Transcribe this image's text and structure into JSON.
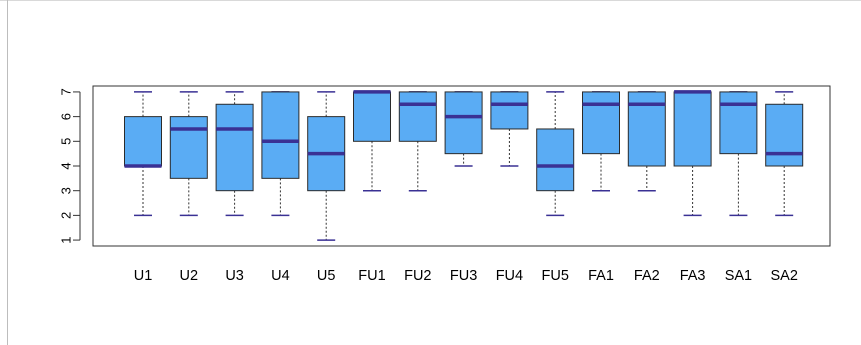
{
  "chart_data": {
    "type": "boxplot",
    "categories": [
      "U1",
      "U2",
      "U3",
      "U4",
      "U5",
      "FU1",
      "FU2",
      "FU3",
      "FU4",
      "FU5",
      "FA1",
      "FA2",
      "FA3",
      "SA1",
      "SA2"
    ],
    "boxes": [
      {
        "name": "U1",
        "min": 2,
        "q1": 4,
        "median": 4,
        "q3": 6,
        "max": 7
      },
      {
        "name": "U2",
        "min": 2,
        "q1": 3.5,
        "median": 5.5,
        "q3": 6,
        "max": 7
      },
      {
        "name": "U3",
        "min": 2,
        "q1": 3,
        "median": 5.5,
        "q3": 6.5,
        "max": 7
      },
      {
        "name": "U4",
        "min": 2,
        "q1": 3.5,
        "median": 5,
        "q3": 7,
        "max": 7
      },
      {
        "name": "U5",
        "min": 1,
        "q1": 3,
        "median": 4.5,
        "q3": 6,
        "max": 7
      },
      {
        "name": "FU1",
        "min": 3,
        "q1": 5,
        "median": 7,
        "q3": 7,
        "max": 7
      },
      {
        "name": "FU2",
        "min": 3,
        "q1": 5,
        "median": 6.5,
        "q3": 7,
        "max": 7
      },
      {
        "name": "FU3",
        "min": 4,
        "q1": 4.5,
        "median": 6,
        "q3": 7,
        "max": 7
      },
      {
        "name": "FU4",
        "min": 4,
        "q1": 5.5,
        "median": 6.5,
        "q3": 7,
        "max": 7
      },
      {
        "name": "FU5",
        "min": 2,
        "q1": 3,
        "median": 4,
        "q3": 5.5,
        "max": 7
      },
      {
        "name": "FA1",
        "min": 3,
        "q1": 4.5,
        "median": 6.5,
        "q3": 7,
        "max": 7
      },
      {
        "name": "FA2",
        "min": 3,
        "q1": 4,
        "median": 6.5,
        "q3": 7,
        "max": 7
      },
      {
        "name": "FA3",
        "min": 2,
        "q1": 4,
        "median": 7,
        "q3": 7,
        "max": 7
      },
      {
        "name": "SA1",
        "min": 2,
        "q1": 4.5,
        "median": 6.5,
        "q3": 7,
        "max": 7
      },
      {
        "name": "SA2",
        "min": 2,
        "q1": 4,
        "median": 4.5,
        "q3": 6.5,
        "max": 7
      }
    ],
    "yticks": [
      1,
      2,
      3,
      4,
      5,
      6,
      7
    ],
    "ylim": [
      0.76,
      7.24
    ],
    "title": "",
    "xlabel": "",
    "ylabel": "",
    "grid": false,
    "legend": "none",
    "colors": {
      "box_fill": "#5aacf4",
      "median": "#3a3194",
      "whisker": "#333333",
      "axis": "#333333"
    }
  }
}
